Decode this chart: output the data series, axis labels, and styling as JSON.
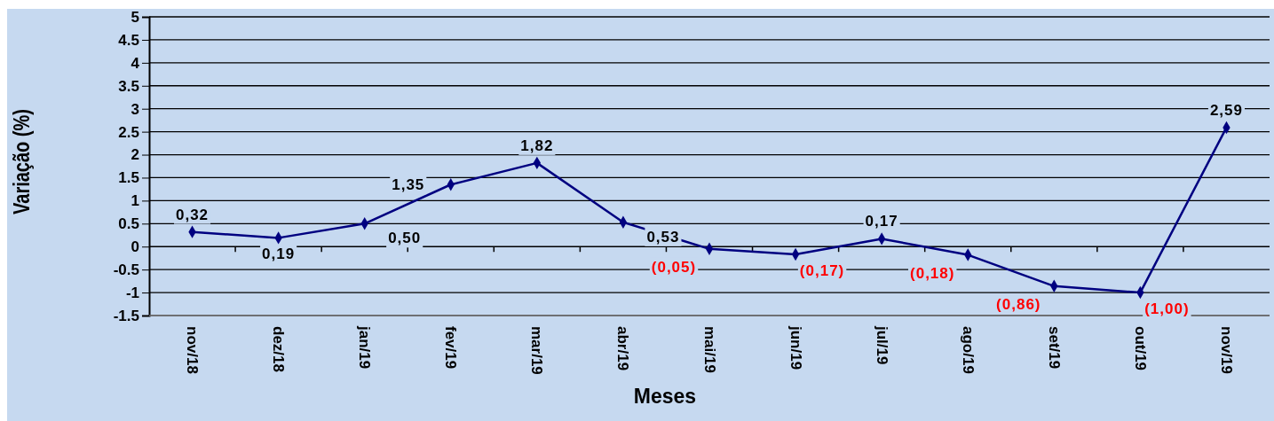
{
  "chart_data": {
    "type": "line",
    "xlabel": "Meses",
    "ylabel": "Variação (%)",
    "categories": [
      "nov/18",
      "dez/18",
      "jan/19",
      "fev/19",
      "mar/19",
      "abr/19",
      "mai/19",
      "jun/19",
      "jul/19",
      "ago/19",
      "set/19",
      "out/19",
      "nov/19"
    ],
    "series": [
      {
        "color": "#000080",
        "values": [
          0.32,
          0.19,
          0.5,
          1.35,
          1.82,
          0.53,
          -0.05,
          -0.17,
          0.17,
          -0.18,
          -0.86,
          -1.0,
          2.59
        ],
        "value_labels": [
          "0,32",
          "0,19",
          "0,50",
          "1,35",
          "1,82",
          "0,53",
          "(0,05)",
          "(0,17)",
          "0,17",
          "(0,18)",
          "(0,86)",
          "(1,00)",
          "2,59"
        ]
      }
    ],
    "ylim": [
      -1.5,
      5
    ],
    "yticks": [
      5,
      4.5,
      4,
      3.5,
      3,
      2.5,
      2,
      1.5,
      1,
      0.5,
      0,
      -0.5,
      -1,
      -1.5
    ],
    "grid": "y",
    "marker": "diamond",
    "line_style": "solid"
  }
}
